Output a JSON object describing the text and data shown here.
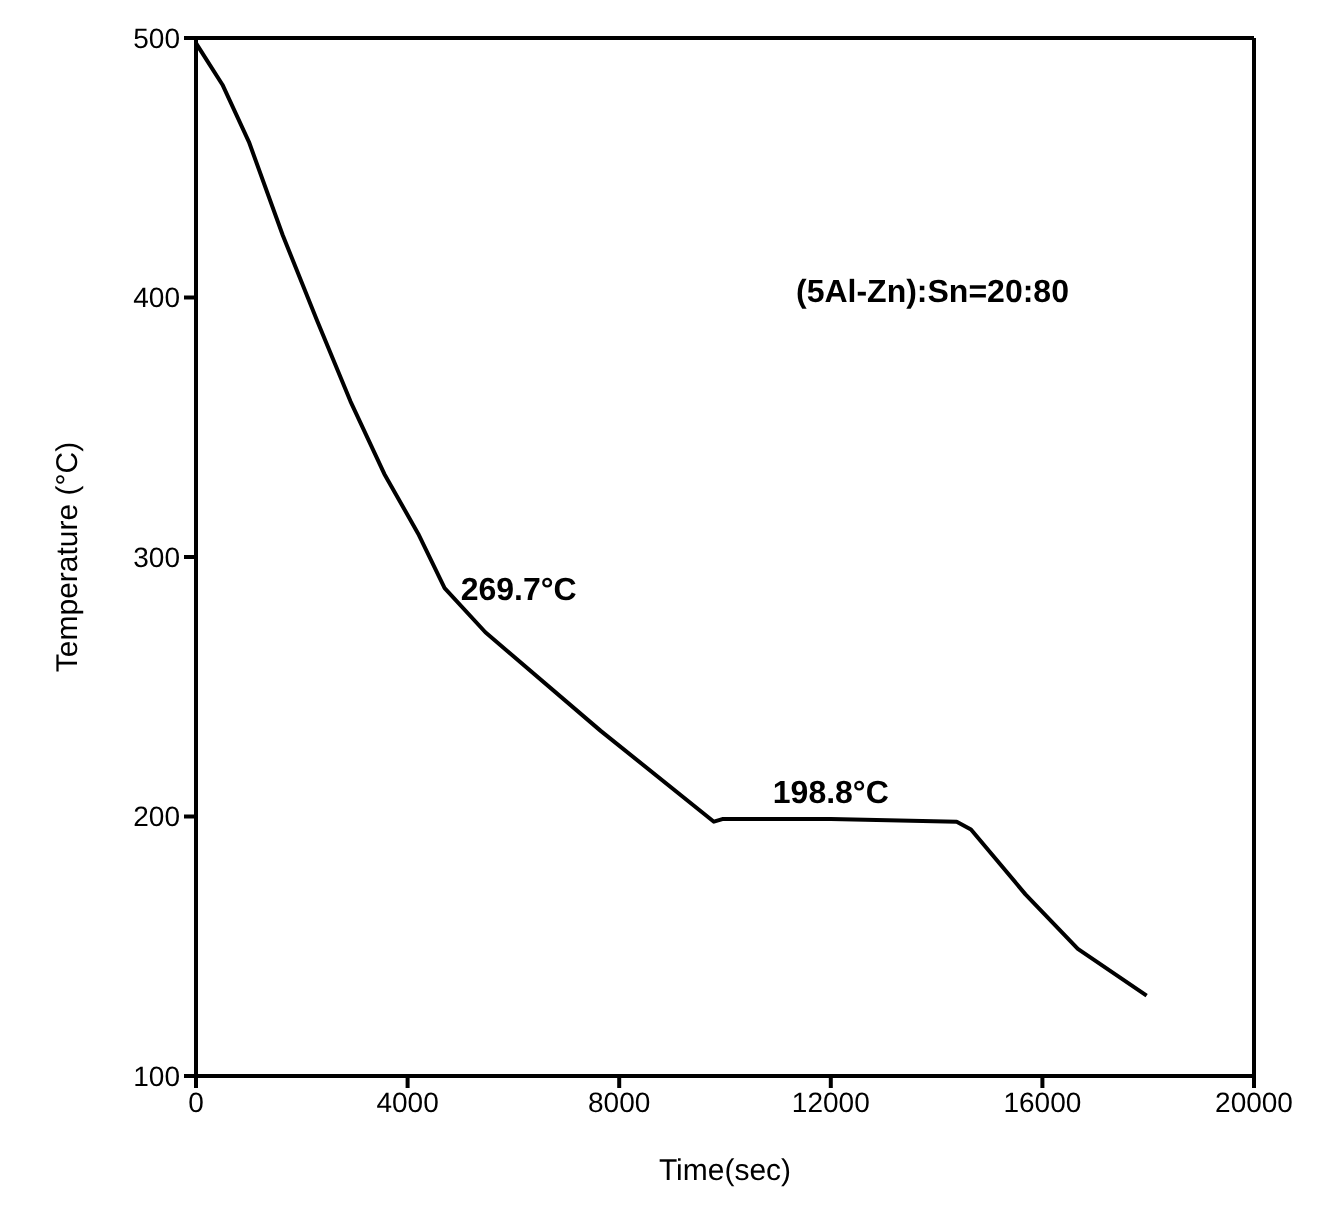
{
  "chart_data": {
    "type": "line",
    "xlabel": "Time(sec)",
    "ylabel": "Temperature (°C)",
    "x": [
      0,
      500,
      1000,
      1640,
      2290,
      2920,
      3560,
      4200,
      4700,
      5470,
      7650,
      9790,
      9950,
      12000,
      14380,
      14650,
      15680,
      16670,
      17970
    ],
    "series": [
      {
        "color": "#000000",
        "values": [
          498,
          482,
          460,
          424,
          391,
          360,
          332,
          309,
          288,
          271,
          233,
          198,
          199,
          199,
          198,
          195,
          170,
          149,
          131
        ]
      }
    ],
    "xlim": [
      0,
      20000
    ],
    "xticks": [
      0,
      4000,
      8000,
      12000,
      16000,
      20000
    ],
    "ylim": [
      100,
      500
    ],
    "yticks": [
      100,
      200,
      300,
      400,
      500
    ],
    "grid": false,
    "marker": "none",
    "line_style": "solid",
    "annotations": [
      {
        "text": "269.7°C",
        "x": 4700,
        "y": 288
      },
      {
        "text": "198.8°C",
        "x": 12000,
        "y": 199
      },
      "(5Al-Zn):Sn=20:80"
    ]
  }
}
